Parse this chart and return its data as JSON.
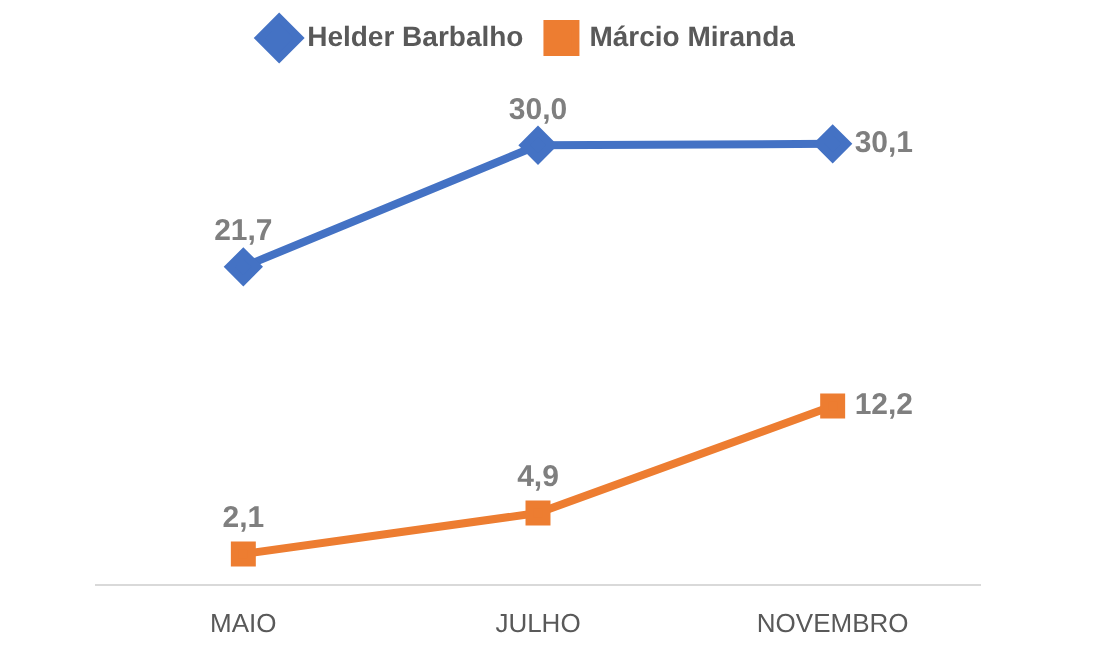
{
  "chart_data": {
    "type": "line",
    "categories": [
      "MAIO",
      "JULHO",
      "NOVEMBRO"
    ],
    "series": [
      {
        "name": "Helder Barbalho",
        "color": "#4472c4",
        "marker": "diamond",
        "values": [
          21.7,
          30.0,
          30.1
        ],
        "value_labels": [
          "21,7",
          "30,0",
          "30,1"
        ]
      },
      {
        "name": "Márcio Miranda",
        "color": "#ed7d31",
        "marker": "square",
        "values": [
          2.1,
          4.9,
          12.2
        ],
        "value_labels": [
          "2,1",
          "4,9",
          "12,2"
        ]
      }
    ],
    "grid": false,
    "legend": "top",
    "line_style": "solid"
  }
}
